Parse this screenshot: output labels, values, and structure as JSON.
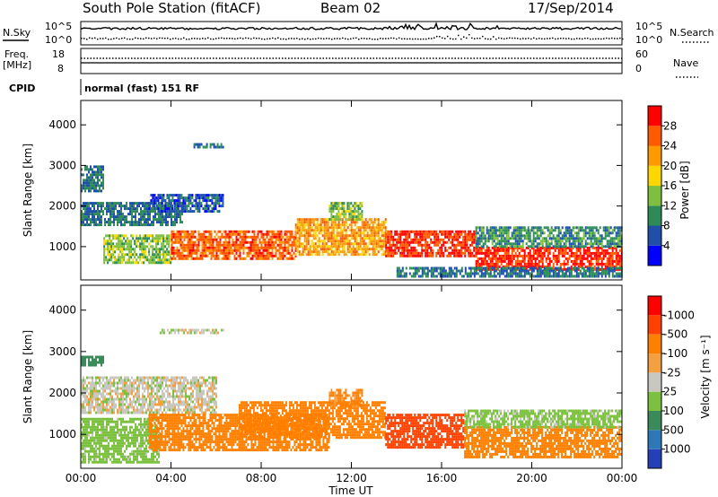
{
  "header": {
    "station_title": "South Pole Station (fitACF)",
    "beam": "Beam 02",
    "date": "17/Sep/2014"
  },
  "summary_panel": {
    "nsky_label": "N.Sky",
    "nsearch_label": "N.Search",
    "nsky_ticks": [
      "10^5",
      "10^0"
    ],
    "freq_label": "Freq.",
    "freq_unit": "[MHz]",
    "freq_ticks": [
      "18",
      "8"
    ],
    "nave_label": "Nave",
    "nave_ticks": [
      "60",
      "0"
    ],
    "cpid_label": "CPID",
    "cpid_text": "normal (fast) 151 RF"
  },
  "colors": {
    "power_scale": [
      "#0000ff",
      "#1f4fa8",
      "#2e8b57",
      "#7fbf3f",
      "#ffd700",
      "#ff9900",
      "#ff5a00",
      "#ff0000"
    ],
    "velocity_scale": [
      "#2340b8",
      "#2e78b8",
      "#3a8a5a",
      "#7cc040",
      "#c8c8c0",
      "#f5a040",
      "#ff7f00",
      "#ff4000",
      "#ff0000"
    ]
  },
  "chart_data": [
    {
      "type": "heatmap",
      "name": "power",
      "ylabel": "Slant Range [km]",
      "xlabel": "",
      "ylim": [
        180,
        4600
      ],
      "xlim": [
        0,
        24
      ],
      "yticks": [
        1000,
        2000,
        3000,
        4000
      ],
      "colorbar": {
        "label": "Power [dB]",
        "ticks": [
          "4",
          "8",
          "12",
          "16",
          "20",
          "24",
          "28"
        ],
        "range": [
          0,
          32
        ]
      },
      "regions": [
        {
          "t0": 0.0,
          "t1": 4.5,
          "r0": 1550,
          "r1": 2100,
          "value": 8
        },
        {
          "t0": 3.0,
          "t1": 6.3,
          "r0": 1900,
          "r1": 2300,
          "value": 6
        },
        {
          "t0": 0.0,
          "t1": 1.0,
          "r0": 2400,
          "r1": 3000,
          "value": 8
        },
        {
          "t0": 1.0,
          "t1": 4.0,
          "r0": 600,
          "r1": 1300,
          "value": 14
        },
        {
          "t0": 4.0,
          "t1": 9.5,
          "r0": 700,
          "r1": 1400,
          "value": 26
        },
        {
          "t0": 9.5,
          "t1": 13.5,
          "r0": 800,
          "r1": 1700,
          "value": 22
        },
        {
          "t0": 13.5,
          "t1": 17.5,
          "r0": 800,
          "r1": 1400,
          "value": 28
        },
        {
          "t0": 17.5,
          "t1": 24.0,
          "r0": 450,
          "r1": 1000,
          "value": 29
        },
        {
          "t0": 17.5,
          "t1": 24.0,
          "r0": 1000,
          "r1": 1500,
          "value": 10
        },
        {
          "t0": 11.0,
          "t1": 12.5,
          "r0": 1700,
          "r1": 2100,
          "value": 14
        },
        {
          "t0": 5.0,
          "t1": 6.3,
          "r0": 3450,
          "r1": 3550,
          "value": 8
        },
        {
          "t0": 14.0,
          "t1": 24.0,
          "r0": 300,
          "r1": 500,
          "value": 8
        }
      ]
    },
    {
      "type": "heatmap",
      "name": "velocity",
      "ylabel": "Slant Range [km]",
      "xlabel": "Time UT",
      "ylim": [
        180,
        4600
      ],
      "xlim": [
        0,
        24
      ],
      "yticks": [
        1000,
        2000,
        3000,
        4000
      ],
      "xticks": [
        "00:00",
        "04:00",
        "08:00",
        "12:00",
        "16:00",
        "20:00",
        "00:00"
      ],
      "colorbar": {
        "label": "Velocity [m s⁻¹]",
        "ticks": [
          "1000",
          "500",
          "100",
          "25",
          "-25",
          "-100",
          "-500",
          "-1000"
        ]
      },
      "regions": [
        {
          "t0": 0.0,
          "t1": 6.0,
          "r0": 1500,
          "r1": 2400,
          "value": 0
        },
        {
          "t0": 0.0,
          "t1": 3.5,
          "r0": 350,
          "r1": 1400,
          "value": 60
        },
        {
          "t0": 3.0,
          "t1": 11.0,
          "r0": 600,
          "r1": 1500,
          "value": -200
        },
        {
          "t0": 7.0,
          "t1": 13.5,
          "r0": 900,
          "r1": 1800,
          "value": -150
        },
        {
          "t0": 13.5,
          "t1": 17.0,
          "r0": 700,
          "r1": 1500,
          "value": -700
        },
        {
          "t0": 17.0,
          "t1": 24.0,
          "r0": 450,
          "r1": 1200,
          "value": -180
        },
        {
          "t0": 17.0,
          "t1": 24.0,
          "r0": 1200,
          "r1": 1600,
          "value": 50
        },
        {
          "t0": 3.5,
          "t1": 6.3,
          "r0": 3450,
          "r1": 3550,
          "value": 0
        },
        {
          "t0": 11.0,
          "t1": 12.5,
          "r0": 1700,
          "r1": 2100,
          "value": -120
        },
        {
          "t0": 0.0,
          "t1": 1.0,
          "r0": 2700,
          "r1": 2900,
          "value": 150
        }
      ]
    }
  ]
}
